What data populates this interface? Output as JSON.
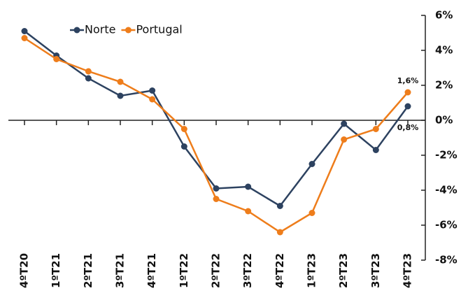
{
  "chart_data": {
    "type": "line",
    "categories": [
      "4ºT20",
      "1ºT21",
      "2ºT21",
      "3ºT21",
      "4ºT21",
      "1ºT22",
      "2ºT22",
      "3ºT22",
      "4ºT22",
      "1ºT23",
      "2ºT23",
      "3ºT23",
      "4ºT23"
    ],
    "series": [
      {
        "name": "Norte",
        "color": "#2d4260",
        "values": [
          5.1,
          3.7,
          2.4,
          1.4,
          1.7,
          -1.5,
          -3.9,
          -3.8,
          -4.9,
          -2.5,
          -0.2,
          -1.7,
          0.8
        ],
        "value_labels": [
          null,
          null,
          null,
          null,
          null,
          null,
          null,
          null,
          null,
          null,
          null,
          null,
          "0,8%"
        ]
      },
      {
        "name": "Portugal",
        "color": "#ee7d1b",
        "values": [
          4.7,
          3.5,
          2.8,
          2.2,
          1.2,
          -0.5,
          -4.5,
          -5.2,
          -6.4,
          -5.3,
          -1.1,
          -0.5,
          1.6
        ],
        "value_labels": [
          null,
          null,
          null,
          null,
          null,
          null,
          null,
          null,
          null,
          null,
          null,
          null,
          "1,6%"
        ]
      }
    ],
    "ylim": [
      -8,
      6
    ],
    "yticks": [
      {
        "value": -8,
        "label": "-8%"
      },
      {
        "value": -6,
        "label": "-6%"
      },
      {
        "value": -4,
        "label": "-4%"
      },
      {
        "value": -2,
        "label": "-2%"
      },
      {
        "value": 0,
        "label": "0%"
      },
      {
        "value": 2,
        "label": "2%"
      },
      {
        "value": 4,
        "label": "4%"
      },
      {
        "value": 6,
        "label": "6%"
      }
    ],
    "y_axis_side": "right",
    "legend": "top-left"
  }
}
